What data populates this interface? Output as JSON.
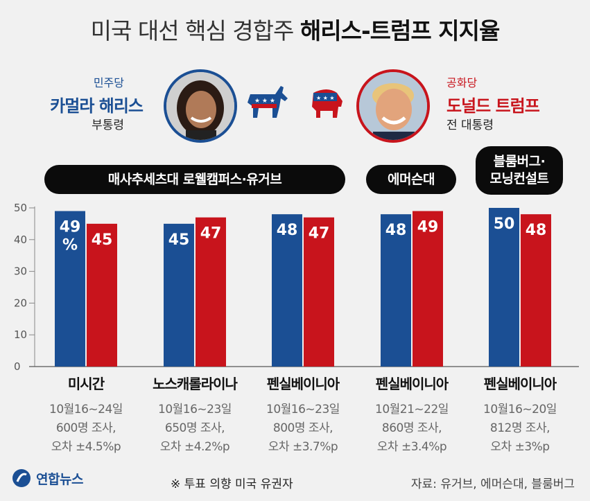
{
  "title": {
    "light": "미국 대선 핵심 경합주",
    "bold": "해리스-트럼프 지지율"
  },
  "candidates": {
    "dem": {
      "party": "민주당",
      "name": "카멀라 해리스",
      "role": "부통령",
      "color": "#1b4f94",
      "symbol": "donkey-icon"
    },
    "rep": {
      "party": "공화당",
      "name": "도널드 트럼프",
      "role": "전 대통령",
      "color": "#c8141c",
      "symbol": "elephant-icon"
    }
  },
  "pollsters": [
    {
      "label": "매사추세츠대 로웰캠퍼스·유거브"
    },
    {
      "label": "에머슨대"
    },
    {
      "label_line1": "블룸버그·",
      "label_line2": "모닝컨설트"
    }
  ],
  "chart_data": {
    "type": "bar",
    "categories": [
      "미시간",
      "노스캐롤라이나",
      "펜실베이니아",
      "펜실베이니아",
      "펜실베이니아"
    ],
    "series": [
      {
        "name": "카멀라 해리스",
        "values": [
          49,
          45,
          48,
          48,
          50
        ],
        "labels": [
          "49\n%",
          "45",
          "48",
          "48",
          "50"
        ],
        "color": "#1b4f94"
      },
      {
        "name": "도널드 트럼프",
        "values": [
          45,
          47,
          47,
          49,
          48
        ],
        "labels": [
          "45",
          "47",
          "47",
          "49",
          "48"
        ],
        "color": "#c8141c"
      }
    ],
    "yticks": [
      0,
      10,
      20,
      30,
      40,
      50
    ],
    "ylim": [
      0,
      50
    ],
    "grid": false,
    "notes": [
      [
        "10월16~24일",
        "600명 조사,",
        "오차 ±4.5%p"
      ],
      [
        "10월16~23일",
        "650명 조사,",
        "오차 ±4.2%p"
      ],
      [
        "10월16~23일",
        "800명 조사,",
        "오차 ±3.7%p"
      ],
      [
        "10월21~22일",
        "860명 조사,",
        "오차 ±3.4%p"
      ],
      [
        "10월16~20일",
        "812명 조사,",
        "오차 ±3%p"
      ]
    ]
  },
  "footer": {
    "logo": "연합뉴스",
    "note": "※ 투표 의향 미국 유권자",
    "source": "자료: 유거브, 에머슨대, 블룸버그"
  }
}
